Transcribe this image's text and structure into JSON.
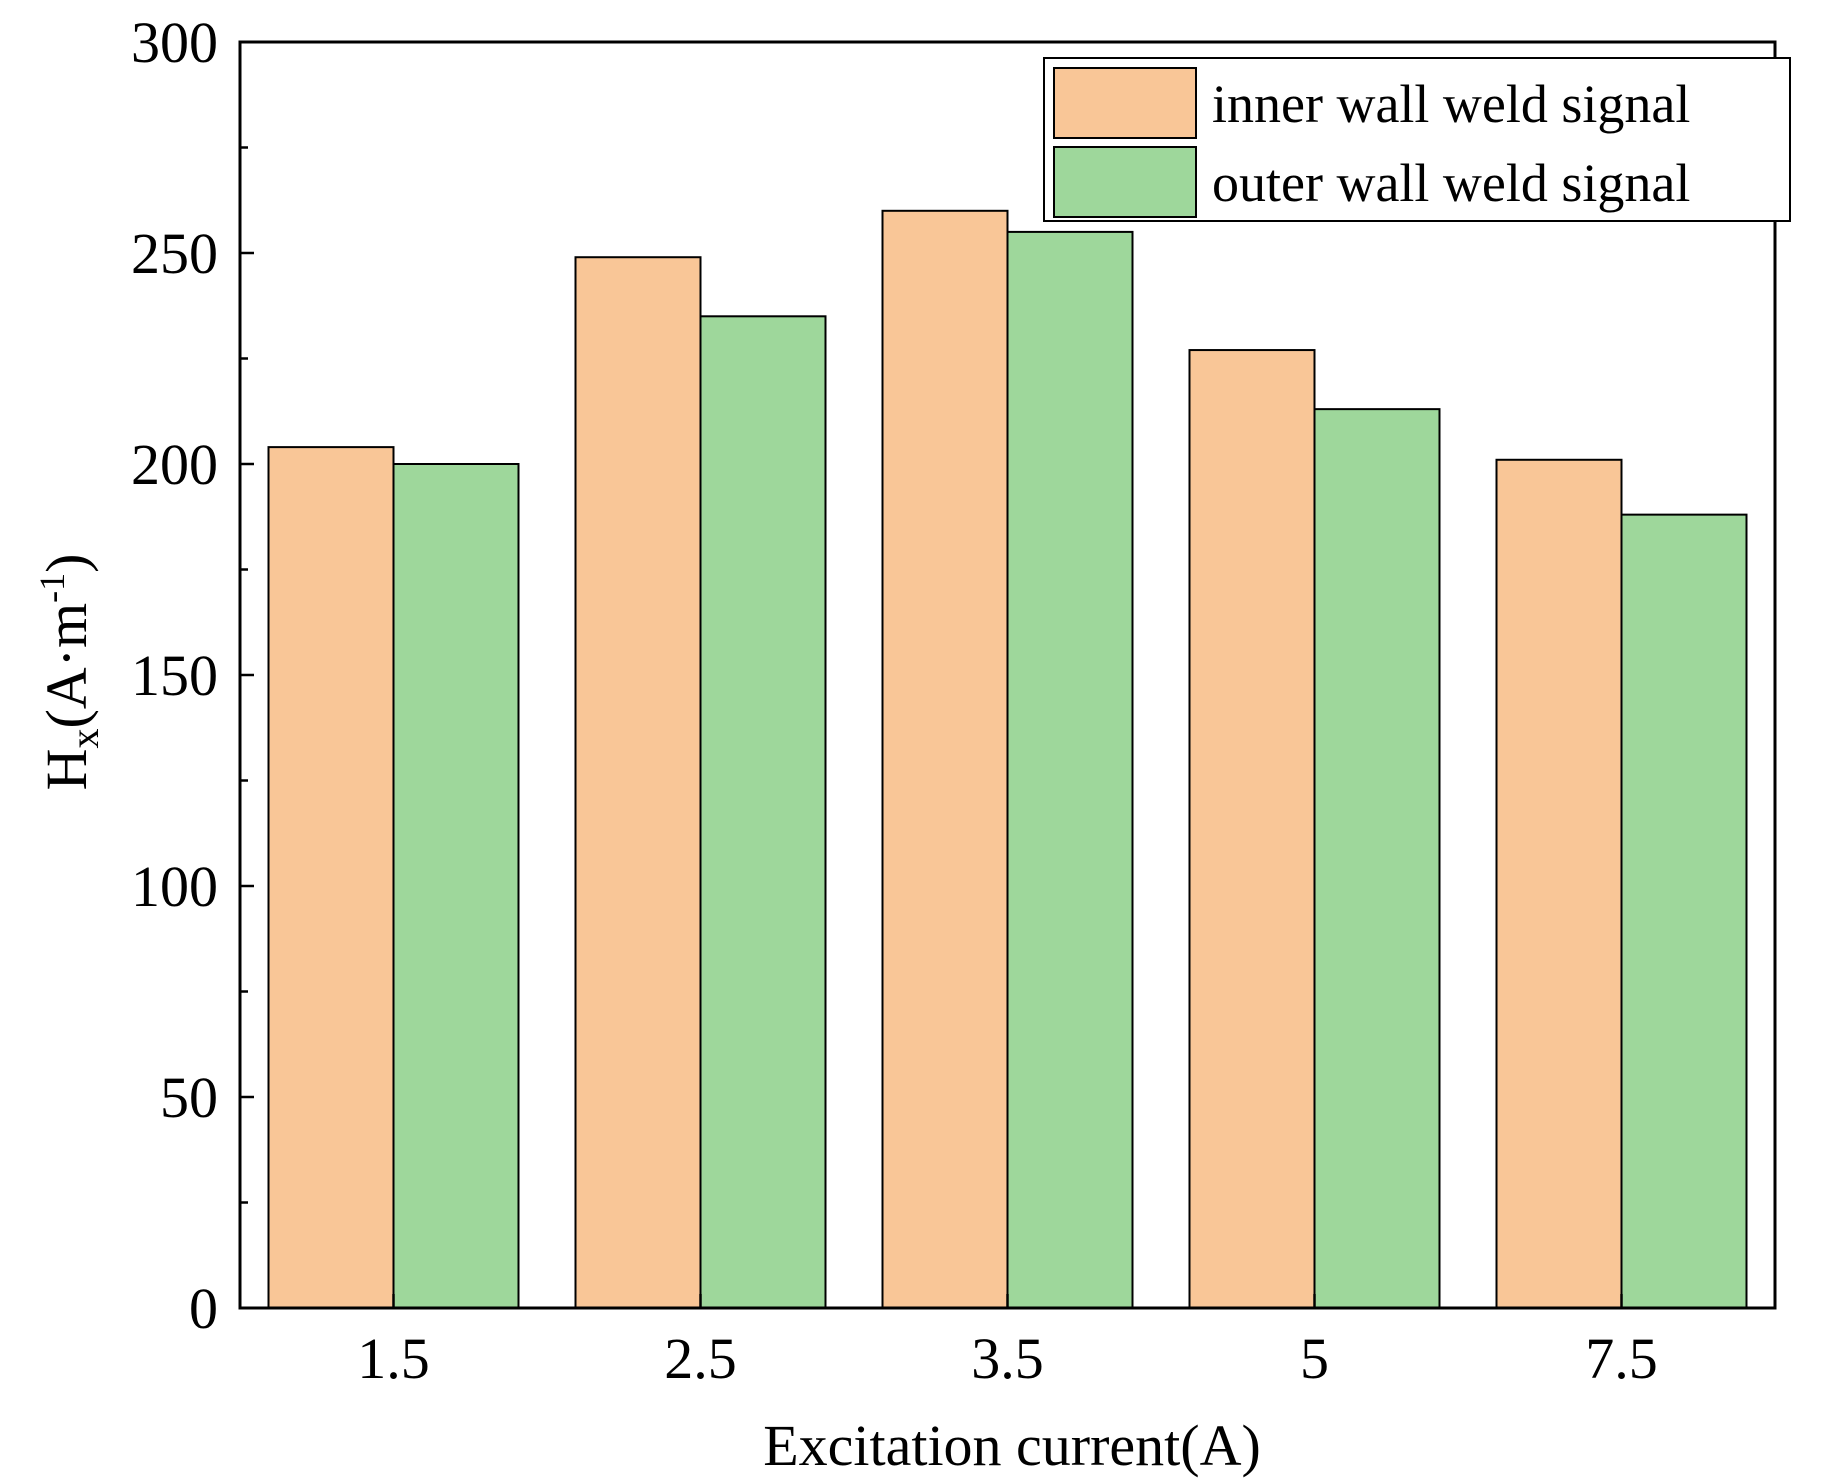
{
  "chart_data": {
    "type": "bar",
    "categories": [
      "1.5",
      "2.5",
      "3.5",
      "5",
      "7.5"
    ],
    "series": [
      {
        "name": "inner wall weld signal",
        "color": "#F9C697",
        "values": [
          204,
          249,
          260,
          227,
          201
        ]
      },
      {
        "name": "outer wall weld signal",
        "color": "#9ED79B",
        "values": [
          200,
          235,
          255,
          213,
          188
        ]
      }
    ],
    "yticks": [
      "0",
      "50",
      "100",
      "150",
      "200",
      "250",
      "300"
    ],
    "ylim": [
      0,
      300
    ],
    "xlabel": "Excitation current(A)",
    "ylabel": {
      "main": "H",
      "sub": "x",
      "unit_open": "(A·m",
      "sup": "-1",
      "unit_close": ")"
    },
    "legend_position": "top-right",
    "grid": false
  }
}
